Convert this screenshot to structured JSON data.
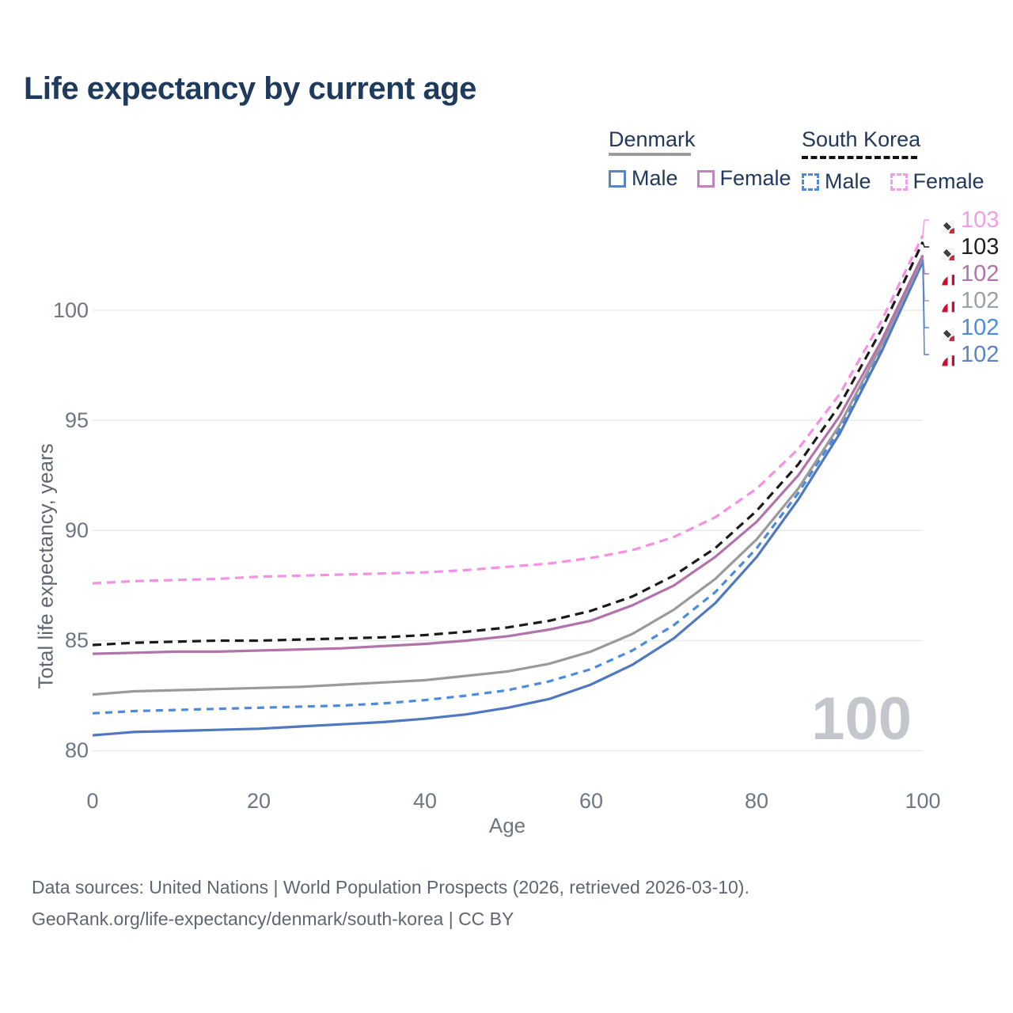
{
  "title": "Life expectancy by current age",
  "legend": {
    "groups": [
      {
        "label": "Denmark",
        "items": [
          {
            "label": "Male"
          },
          {
            "label": "Female"
          }
        ]
      },
      {
        "label": "South Korea",
        "items": [
          {
            "label": "Male"
          },
          {
            "label": "Female"
          }
        ]
      }
    ]
  },
  "y_axis": {
    "title": "Total life expectancy, years",
    "ticks": [
      "100",
      "95",
      "90",
      "85",
      "80"
    ]
  },
  "x_axis": {
    "title": "Age",
    "ticks": [
      "0",
      "20",
      "40",
      "60",
      "80",
      "100"
    ]
  },
  "watermark": "100",
  "end_labels": [
    {
      "value": "103",
      "flag_ref": "#flag-south-korea",
      "color": "#f49be9"
    },
    {
      "value": "103",
      "flag_ref": "#flag-south-korea",
      "color": "#1f1f1f"
    },
    {
      "value": "102",
      "flag_ref": "#flag-denmark",
      "color": "#b273ab"
    },
    {
      "value": "102",
      "flag_ref": "#flag-denmark",
      "color": "#9ba0a6"
    },
    {
      "value": "102",
      "flag_ref": "#flag-south-korea",
      "color": "#4a8ae0"
    },
    {
      "value": "102",
      "flag_ref": "#flag-denmark",
      "color": "#5b82c8"
    }
  ],
  "footer": {
    "line1": "Data sources: United Nations | World Population Prospects (2026, retrieved 2026-03-10).",
    "line2": "GeoRank.org/life-expectancy/denmark/south-korea | CC BY"
  },
  "chart_data": {
    "type": "line",
    "title": "Life expectancy by current age",
    "xlabel": "Age",
    "ylabel": "Total life expectancy, years",
    "xlim": [
      0,
      100
    ],
    "ylim": [
      80,
      103.5
    ],
    "grid": "horizontal",
    "legend_position": "top-right",
    "x": [
      0,
      5,
      10,
      15,
      20,
      25,
      30,
      35,
      40,
      45,
      50,
      55,
      60,
      65,
      70,
      75,
      80,
      85,
      90,
      95,
      100
    ],
    "series": [
      {
        "name": "South Korea Female",
        "style": "dashed",
        "color": "#f78fe4",
        "end_label": "103",
        "values": [
          87.6,
          87.7,
          87.75,
          87.8,
          87.9,
          87.95,
          88.0,
          88.05,
          88.1,
          88.2,
          88.35,
          88.5,
          88.75,
          89.1,
          89.7,
          90.6,
          91.9,
          93.7,
          96.2,
          99.5,
          103.4
        ]
      },
      {
        "name": "South Korea",
        "style": "dashed",
        "color": "#1a1a1a",
        "end_label": "103",
        "values": [
          84.8,
          84.9,
          84.95,
          85.0,
          85.0,
          85.05,
          85.1,
          85.15,
          85.25,
          85.4,
          85.6,
          85.9,
          86.35,
          87.0,
          87.95,
          89.2,
          90.9,
          93.0,
          95.7,
          99.1,
          103.1
        ]
      },
      {
        "name": "Denmark Female",
        "style": "solid",
        "color": "#b273ab",
        "end_label": "102",
        "values": [
          84.4,
          84.45,
          84.5,
          84.5,
          84.55,
          84.6,
          84.65,
          84.75,
          84.85,
          85.0,
          85.2,
          85.5,
          85.9,
          86.6,
          87.5,
          88.8,
          90.4,
          92.5,
          95.2,
          98.6,
          102.5
        ]
      },
      {
        "name": "Denmark",
        "style": "solid",
        "color": "#9a9a9a",
        "end_label": "102",
        "values": [
          82.55,
          82.7,
          82.75,
          82.8,
          82.85,
          82.9,
          83.0,
          83.1,
          83.2,
          83.4,
          83.6,
          83.95,
          84.5,
          85.3,
          86.4,
          87.8,
          89.6,
          91.9,
          94.8,
          98.4,
          102.4
        ]
      },
      {
        "name": "South Korea Male",
        "style": "dashed",
        "color": "#4a8ae0",
        "end_label": "102",
        "values": [
          81.7,
          81.8,
          81.85,
          81.9,
          81.95,
          82.0,
          82.05,
          82.15,
          82.3,
          82.5,
          82.75,
          83.15,
          83.7,
          84.55,
          85.7,
          87.2,
          89.2,
          91.7,
          94.6,
          98.3,
          102.3
        ]
      },
      {
        "name": "Denmark Male",
        "style": "solid",
        "color": "#4f78c0",
        "end_label": "102",
        "values": [
          80.7,
          80.85,
          80.9,
          80.95,
          81.0,
          81.1,
          81.2,
          81.3,
          81.45,
          81.65,
          81.95,
          82.35,
          83.0,
          83.9,
          85.1,
          86.7,
          88.8,
          91.4,
          94.4,
          98.1,
          102.2
        ]
      }
    ]
  }
}
